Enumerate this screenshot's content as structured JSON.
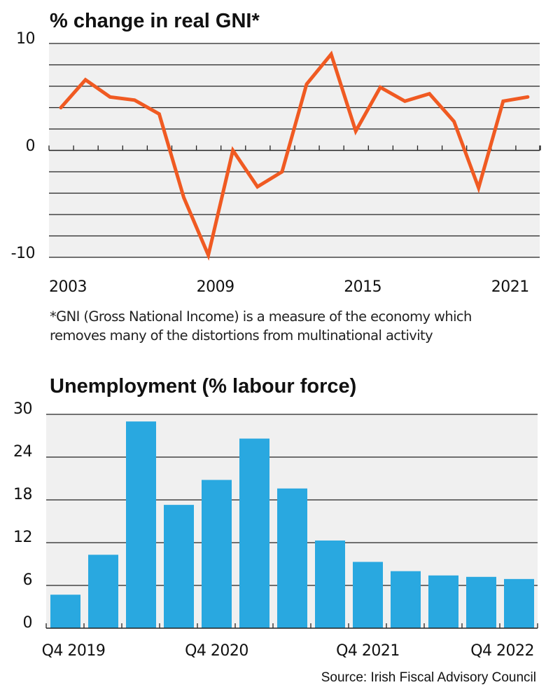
{
  "chart_data": [
    {
      "type": "line",
      "title": "% change in real GNI*",
      "xlabel": "",
      "ylabel": "",
      "x": [
        2003,
        2004,
        2005,
        2006,
        2007,
        2008,
        2009,
        2010,
        2011,
        2012,
        2013,
        2014,
        2015,
        2016,
        2017,
        2018,
        2019,
        2020,
        2021,
        2022
      ],
      "series": [
        {
          "name": "% change in real GNI",
          "values": [
            4.0,
            6.6,
            5.0,
            4.7,
            3.4,
            -4.4,
            -9.8,
            0.0,
            -3.4,
            -2.0,
            6.2,
            9.0,
            1.8,
            5.9,
            4.6,
            5.3,
            2.7,
            -3.5,
            4.6,
            5.0
          ],
          "color": "#f05a22"
        }
      ],
      "ylim": [
        -10,
        10
      ],
      "yticks": [
        -10,
        0,
        10
      ],
      "ytick_labels": [
        "-10",
        "0",
        "10"
      ],
      "gridlines": [
        10,
        8,
        6,
        4,
        2,
        0,
        -2,
        -4,
        -6,
        -8,
        -10
      ],
      "xticks": [
        2003,
        2009,
        2015,
        2021
      ],
      "xtick_labels": [
        "2003",
        "2009",
        "2015",
        "2021"
      ],
      "grid": true,
      "footnote": "*GNI (Gross National Income) is a measure of the economy which removes many of the distortions from multinational activity",
      "footnote_lines": [
        "*GNI (Gross National Income) is a measure of the economy which",
        "removes many of the distortions from multinational activity"
      ]
    },
    {
      "type": "bar",
      "title": "Unemployment (% labour force)",
      "xlabel": "",
      "ylabel": "",
      "categories": [
        "Q4 2019",
        "Q1 2020",
        "Q2 2020",
        "Q3 2020",
        "Q4 2020",
        "Q1 2021",
        "Q2 2021",
        "Q3 2021",
        "Q4 2021",
        "Q1 2022",
        "Q2 2022",
        "Q3 2022",
        "Q4 2022"
      ],
      "values": [
        4.7,
        10.3,
        29.0,
        17.3,
        20.8,
        26.6,
        19.6,
        12.3,
        9.3,
        8.0,
        7.4,
        7.2,
        6.9
      ],
      "color": "#29a8e0",
      "ylim": [
        0,
        30
      ],
      "yticks": [
        0,
        6,
        12,
        18,
        24,
        30
      ],
      "ytick_labels": [
        "0",
        "6",
        "12",
        "18",
        "24",
        "30"
      ],
      "xtick_labels_shown": [
        "Q4 2019",
        "Q4 2020",
        "Q4 2021",
        "Q4 2022"
      ],
      "grid": true
    }
  ],
  "source": "Source: Irish Fiscal Advisory Council",
  "colors": {
    "plot_background": "#f0f0f0",
    "gridline": "#222222"
  }
}
